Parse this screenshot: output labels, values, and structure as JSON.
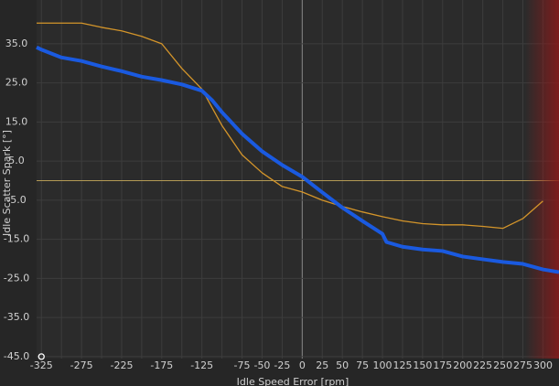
{
  "chart_data": {
    "type": "line",
    "x_label": "Idle Speed Error [rpm]",
    "y_label": "Idle Scatter Spark [°]",
    "xlim": [
      -331,
      320
    ],
    "ylim": [
      -45.5,
      46.2
    ],
    "xticks": [
      -325,
      -275,
      -225,
      -175,
      -125,
      -75,
      -50,
      -25,
      0,
      25,
      50,
      75,
      100,
      125,
      150,
      175,
      200,
      225,
      250,
      275,
      300
    ],
    "x_gridlines": [
      -325,
      -300,
      -275,
      -250,
      -225,
      -200,
      -175,
      -150,
      -125,
      -100,
      -75,
      -50,
      -25,
      0,
      25,
      50,
      75,
      100,
      125,
      150,
      175,
      200,
      225,
      250,
      275,
      300
    ],
    "yticks": [
      {
        "value": 35,
        "label": "35.0"
      },
      {
        "value": 25,
        "label": "25.0"
      },
      {
        "value": 15,
        "label": "15.0"
      },
      {
        "value": 5,
        "label": "5.0"
      },
      {
        "value": -5,
        "label": "-5.0"
      },
      {
        "value": -15,
        "label": "-15.0"
      },
      {
        "value": -25,
        "label": "-25.0"
      },
      {
        "value": -35,
        "label": "-35.0"
      },
      {
        "value": -45,
        "label": "-45.0"
      }
    ],
    "zero_line_color": "#b39a55",
    "shaded_xrange": [
      278,
      320
    ],
    "shaded_color": "#8b1a1a",
    "marker": {
      "x": -325,
      "y": -45
    },
    "series": [
      {
        "color": "#d4952a",
        "width": 1.3,
        "x": [
          -331,
          -275,
          -250,
          -225,
          -200,
          -175,
          -150,
          -125,
          -100,
          -75,
          -50,
          -25,
          0,
          25,
          50,
          75,
          100,
          125,
          150,
          175,
          200,
          225,
          250,
          275,
          300
        ],
        "values": [
          40.3,
          40.3,
          39.2,
          38.3,
          36.9,
          35,
          28.7,
          23.4,
          14.1,
          6.6,
          2,
          -1.5,
          -2.9,
          -5,
          -6.6,
          -8,
          -9.2,
          -10.3,
          -11,
          -11.3,
          -11.3,
          -11.7,
          -12.2,
          -9.7,
          -5.2
        ]
      },
      {
        "color": "#1a5ae0",
        "width": 4,
        "x": [
          -331,
          -325,
          -300,
          -275,
          -250,
          -225,
          -200,
          -175,
          -150,
          -125,
          -112,
          -100,
          -75,
          -50,
          -25,
          0,
          25,
          50,
          75,
          100,
          105,
          125,
          150,
          175,
          200,
          225,
          250,
          275,
          300,
          320
        ],
        "values": [
          34.1,
          33.5,
          31.5,
          30.6,
          29.2,
          28,
          26.6,
          25.7,
          24.6,
          23,
          20.5,
          17.5,
          12,
          7.5,
          4,
          1,
          -3,
          -6.9,
          -10.3,
          -13.6,
          -15.7,
          -16.9,
          -17.6,
          -18,
          -19.4,
          -20.1,
          -20.8,
          -21.3,
          -22.7,
          -23.4
        ]
      }
    ]
  }
}
